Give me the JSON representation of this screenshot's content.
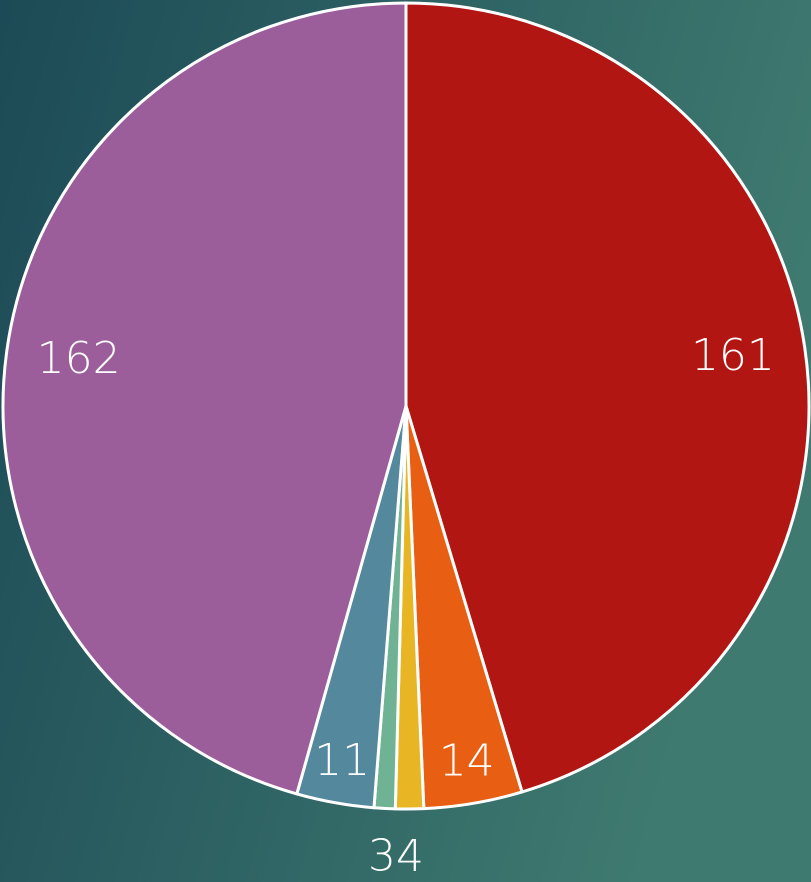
{
  "chart_data": {
    "type": "pie",
    "values": [
      161,
      14,
      4,
      3,
      11,
      162
    ],
    "colors": [
      "#b11612",
      "#e85f13",
      "#e8b624",
      "#6fb294",
      "#53889d",
      "#9c5e9b"
    ]
  }
}
